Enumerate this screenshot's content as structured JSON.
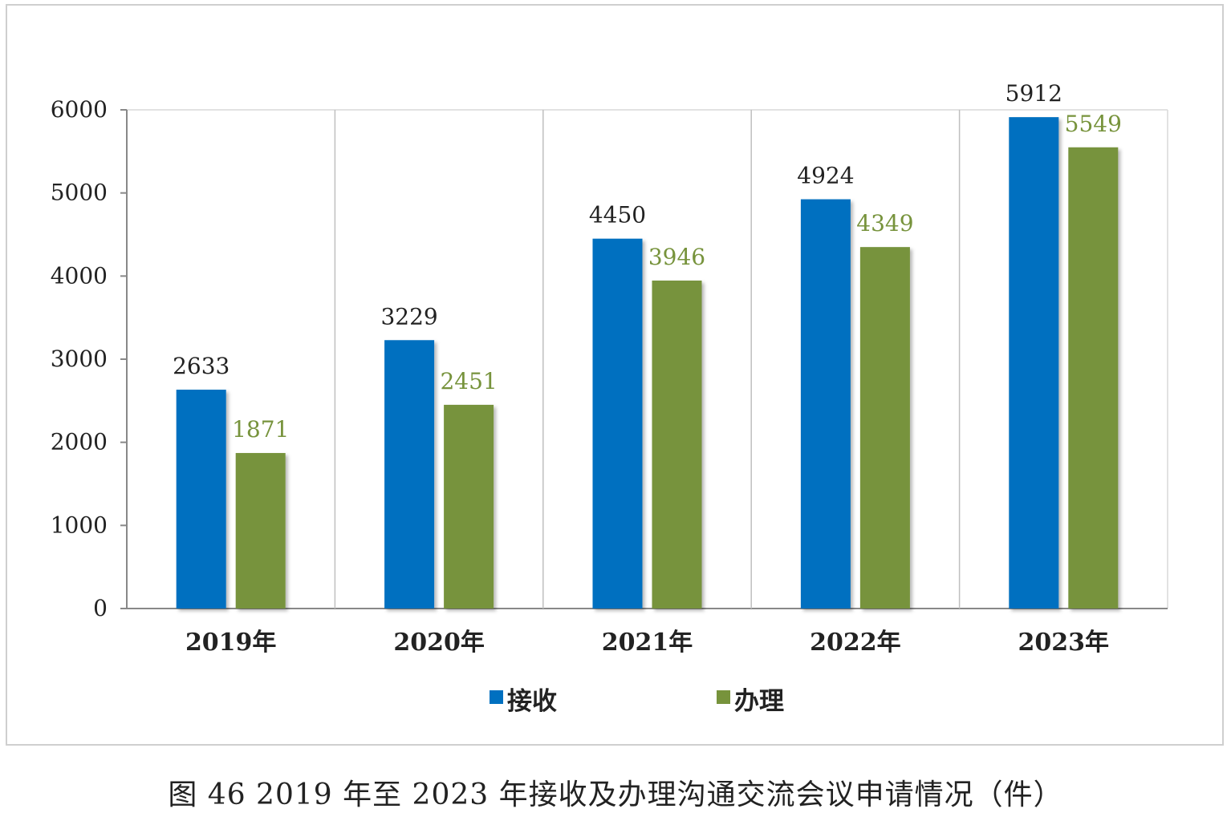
{
  "caption": "图 46 2019 年至 2023 年接收及办理沟通交流会议申请情况（件）",
  "chart_data": {
    "type": "bar",
    "categories": [
      "2019年",
      "2020年",
      "2021年",
      "2022年",
      "2023年"
    ],
    "series": [
      {
        "name": "接收",
        "color": "#0070c0",
        "values": [
          2633,
          3229,
          4450,
          4924,
          5912
        ]
      },
      {
        "name": "办理",
        "color": "#77933c",
        "values": [
          1871,
          2451,
          3946,
          4349,
          5549
        ]
      }
    ],
    "yticks": [
      0,
      1000,
      2000,
      3000,
      4000,
      5000,
      6000
    ],
    "ylim": [
      0,
      6000
    ],
    "grid": "vertical-separators",
    "legend": "bottom-center"
  }
}
